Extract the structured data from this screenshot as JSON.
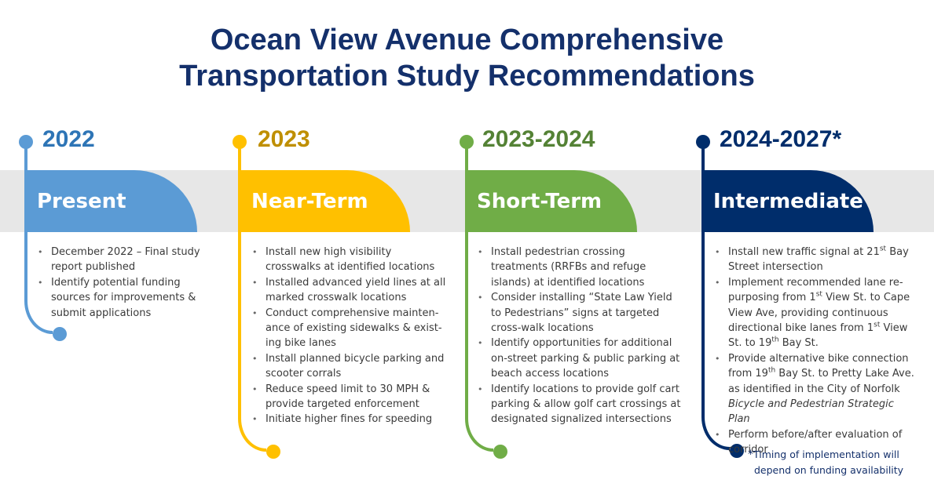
{
  "title": {
    "line1": "Ocean View Avenue Comprehensive",
    "line2": "Transportation Study Recommendations"
  },
  "colors": {
    "title": "#14306b",
    "present": "#5b9bd5",
    "near_term": "#ffc000",
    "near_term_year": "#bf8f00",
    "short_term": "#70ad47",
    "short_term_year": "#548235",
    "intermediate": "#002d6b",
    "band": "#e7e7e7"
  },
  "phases": [
    {
      "year": "2022",
      "name": "Present",
      "items": [
        "December 2022 – Final study report  published",
        "Identify potential funding sources for improvements  & submit applications"
      ]
    },
    {
      "year": "2023",
      "name": "Near-Term",
      "items": [
        "Install new high visibility crosswalks at identified locations",
        "Installed advanced yield lines at all marked  crosswalk locations",
        "Conduct comprehensive mainten-ance of existing sidewalks & exist-ing bike lanes",
        "Install planned bicycle parking and scooter corrals",
        "Reduce speed limit to 30 MPH & provide targeted enforcement",
        "Initiate higher fines for speeding"
      ]
    },
    {
      "year": "2023-2024",
      "name": "Short-Term",
      "items": [
        "Install pedestrian crossing treatments (RRFBs and refuge islands) at identified locations",
        "Consider installing “State Law Yield to Pedestrians” signs at targeted cross-walk locations",
        "Identify opportunities  for additional on-street parking & public parking at beach access locations",
        "Identify locations to provide golf cart parking & allow golf cart crossings at designated signalized intersections"
      ]
    },
    {
      "year": "2024-2027*",
      "name": "Intermediate",
      "items": [
        "Install new traffic signal at 21st Bay Street intersection",
        "Implement recommended  lane re-purposing from  1st View St. to Cape View Ave, providing continuous directional bike lanes from 1st View St. to 19th Bay St.",
        "Provide alternative bike connection from 19th Bay St. to Pretty Lake Ave. as identified in the City of Norfolk Bicycle and Pedestrian Strategic Plan",
        "Perform  before/after evaluation of corridor"
      ]
    }
  ],
  "footnote": {
    "star": "*",
    "line1": "Timing of implementation will",
    "line2": "depend on funding availability"
  }
}
